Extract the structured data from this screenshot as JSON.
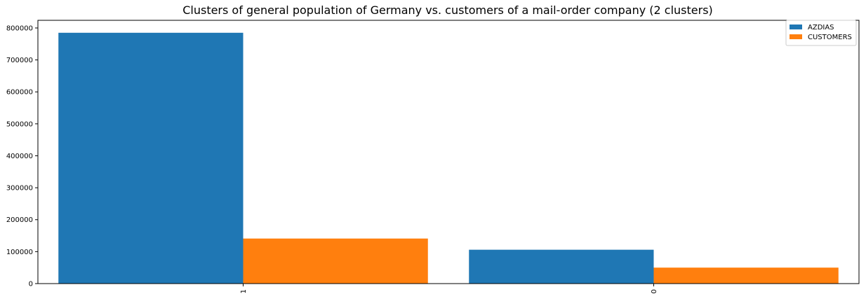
{
  "chart_data": {
    "type": "bar",
    "title": "Clusters of general population of Germany vs. customers of a mail-order company (2 clusters)",
    "xlabel": "",
    "ylabel": "",
    "categories": [
      "1",
      "0"
    ],
    "series": [
      {
        "name": "AZDIAS",
        "values": [
          785000,
          106000
        ],
        "color": "#1f77b4"
      },
      {
        "name": "CUSTOMERS",
        "values": [
          141000,
          50000
        ],
        "color": "#ff7f0e"
      }
    ],
    "yticks": [
      0,
      100000,
      200000,
      300000,
      400000,
      500000,
      600000,
      700000,
      800000
    ],
    "ytick_labels": [
      "0",
      "100000",
      "200000",
      "300000",
      "400000",
      "500000",
      "600000",
      "700000",
      "800000"
    ],
    "ylim": [
      0,
      824000
    ],
    "grid": false,
    "legend_position": "top-right",
    "x_tick_rotation": 90
  }
}
